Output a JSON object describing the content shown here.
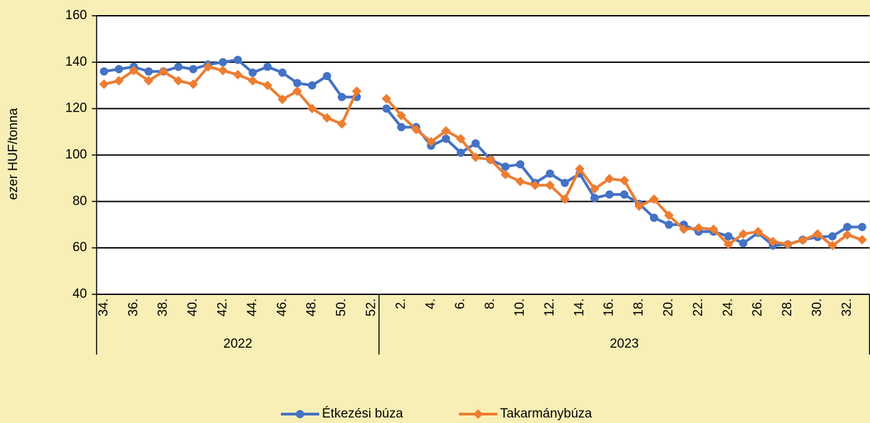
{
  "chart_data": {
    "type": "line",
    "y_label": "ezer HUF/tonna",
    "groups": [
      {
        "name": "2022",
        "categories": [
          "34.",
          null,
          "36.",
          null,
          "38.",
          null,
          "40.",
          null,
          "42.",
          null,
          "44.",
          null,
          "46.",
          null,
          "48.",
          null,
          "50.",
          null,
          "52."
        ]
      },
      {
        "name": "2023",
        "categories": [
          null,
          "2.",
          null,
          "4.",
          null,
          "6.",
          null,
          "8.",
          null,
          "10.",
          null,
          "12.",
          null,
          "14.",
          null,
          "16.",
          null,
          "18.",
          null,
          "20.",
          null,
          "22.",
          null,
          "24.",
          null,
          "26.",
          null,
          "28.",
          null,
          "30.",
          null,
          "32.",
          null
        ]
      }
    ],
    "series": [
      {
        "name": "Étkezési búza",
        "color": "#4472C4",
        "marker": "circle",
        "values": [
          136,
          137,
          138,
          136,
          136,
          138,
          137,
          139,
          140,
          141,
          135.5,
          138,
          135.5,
          131,
          130,
          134,
          125,
          125,
          null,
          120,
          112,
          112,
          104,
          107,
          101,
          105,
          98,
          95,
          96,
          88,
          92,
          88,
          92,
          81.5,
          83,
          83,
          79,
          73,
          70,
          70,
          67,
          67,
          65,
          62,
          66.5,
          61,
          61.5,
          63.5,
          64.7,
          65,
          69,
          69
        ]
      },
      {
        "name": "Takarmánybúza",
        "color": "#ED7D31",
        "marker": "diamond",
        "values": [
          130.5,
          132,
          136.4,
          132,
          136,
          132,
          130.5,
          138,
          136.4,
          134.6,
          132,
          130,
          124,
          127.5,
          120,
          116,
          113.4,
          127.5,
          null,
          124.3,
          117,
          111,
          105.7,
          110.4,
          107,
          99,
          98,
          91.6,
          88.6,
          87,
          87,
          81,
          94,
          85.4,
          89.8,
          89,
          78,
          81,
          74,
          68,
          68.6,
          68,
          61.5,
          66,
          67,
          62.7,
          61.5,
          63.3,
          66,
          61,
          65.6,
          63.5
        ]
      }
    ],
    "ylim": [
      40,
      160
    ],
    "yticks": [
      40,
      60,
      80,
      100,
      120,
      140,
      160
    ],
    "grid": true
  }
}
